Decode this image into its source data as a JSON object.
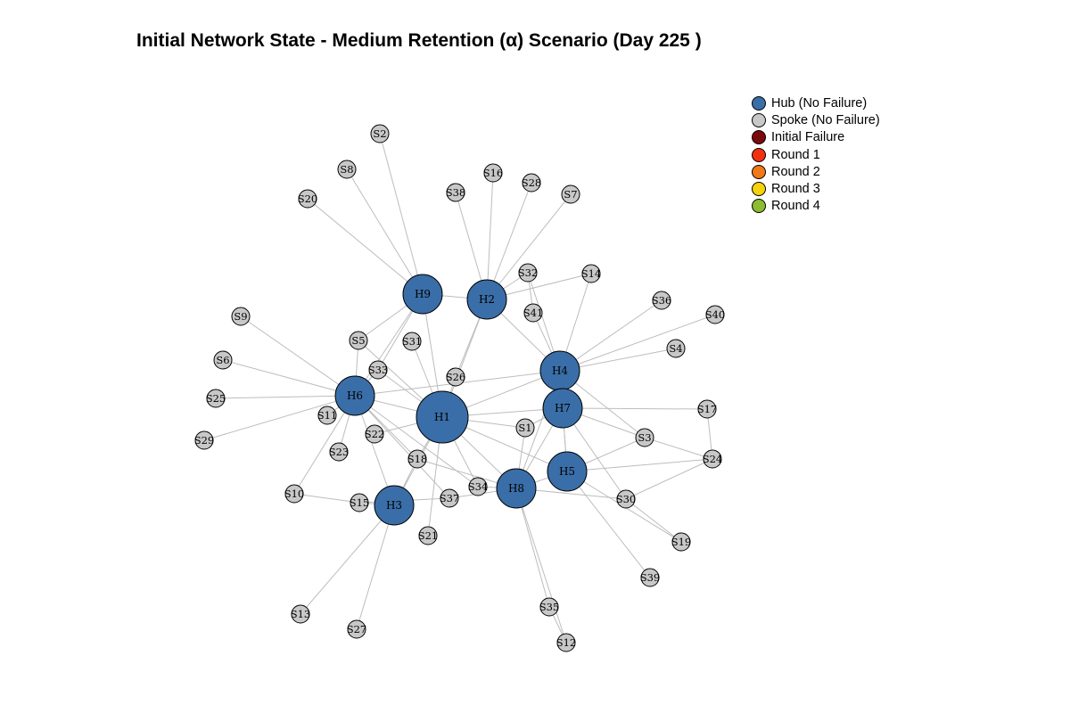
{
  "title": "Initial Network State - Medium Retention (α) Scenario (Day 225 )",
  "colors": {
    "hub": "#3a6ea8",
    "spoke": "#c8c8c8",
    "edge": "#bdbdbd",
    "initial_failure": "#7a0a0a",
    "round1": "#f2300f",
    "round2": "#f07818",
    "round3": "#f5d20a",
    "round4": "#8cbc30"
  },
  "legend": [
    {
      "label": "Hub (No Failure)",
      "color": "#3a6ea8"
    },
    {
      "label": "Spoke (No Failure)",
      "color": "#c8c8c8"
    },
    {
      "label": "Initial Failure",
      "color": "#7a0a0a"
    },
    {
      "label": "Round 1",
      "color": "#f2300f"
    },
    {
      "label": "Round 2",
      "color": "#f07818"
    },
    {
      "label": "Round 3",
      "color": "#f5d20a"
    },
    {
      "label": "Round 4",
      "color": "#8cbc30"
    }
  ],
  "nodes": [
    {
      "id": "H1",
      "type": "hub",
      "status": "no-failure"
    },
    {
      "id": "H2",
      "type": "hub",
      "status": "no-failure"
    },
    {
      "id": "H3",
      "type": "hub",
      "status": "no-failure"
    },
    {
      "id": "H4",
      "type": "hub",
      "status": "no-failure"
    },
    {
      "id": "H5",
      "type": "hub",
      "status": "no-failure"
    },
    {
      "id": "H6",
      "type": "hub",
      "status": "no-failure"
    },
    {
      "id": "H7",
      "type": "hub",
      "status": "no-failure"
    },
    {
      "id": "H8",
      "type": "hub",
      "status": "no-failure"
    },
    {
      "id": "H9",
      "type": "hub",
      "status": "no-failure"
    },
    {
      "id": "S1",
      "type": "spoke",
      "status": "no-failure"
    },
    {
      "id": "S2",
      "type": "spoke",
      "status": "no-failure"
    },
    {
      "id": "S3",
      "type": "spoke",
      "status": "no-failure"
    },
    {
      "id": "S4",
      "type": "spoke",
      "status": "no-failure"
    },
    {
      "id": "S5",
      "type": "spoke",
      "status": "no-failure"
    },
    {
      "id": "S6",
      "type": "spoke",
      "status": "no-failure"
    },
    {
      "id": "S7",
      "type": "spoke",
      "status": "no-failure"
    },
    {
      "id": "S8",
      "type": "spoke",
      "status": "no-failure"
    },
    {
      "id": "S9",
      "type": "spoke",
      "status": "no-failure"
    },
    {
      "id": "S10",
      "type": "spoke",
      "status": "no-failure"
    },
    {
      "id": "S11",
      "type": "spoke",
      "status": "no-failure"
    },
    {
      "id": "S12",
      "type": "spoke",
      "status": "no-failure"
    },
    {
      "id": "S13",
      "type": "spoke",
      "status": "no-failure"
    },
    {
      "id": "S14",
      "type": "spoke",
      "status": "no-failure"
    },
    {
      "id": "S15",
      "type": "spoke",
      "status": "no-failure"
    },
    {
      "id": "S16",
      "type": "spoke",
      "status": "no-failure"
    },
    {
      "id": "S17",
      "type": "spoke",
      "status": "no-failure"
    },
    {
      "id": "S18",
      "type": "spoke",
      "status": "no-failure"
    },
    {
      "id": "S19",
      "type": "spoke",
      "status": "no-failure"
    },
    {
      "id": "S20",
      "type": "spoke",
      "status": "no-failure"
    },
    {
      "id": "S21",
      "type": "spoke",
      "status": "no-failure"
    },
    {
      "id": "S22",
      "type": "spoke",
      "status": "no-failure"
    },
    {
      "id": "S23",
      "type": "spoke",
      "status": "no-failure"
    },
    {
      "id": "S24",
      "type": "spoke",
      "status": "no-failure"
    },
    {
      "id": "S25",
      "type": "spoke",
      "status": "no-failure"
    },
    {
      "id": "S26",
      "type": "spoke",
      "status": "no-failure"
    },
    {
      "id": "S27",
      "type": "spoke",
      "status": "no-failure"
    },
    {
      "id": "S28",
      "type": "spoke",
      "status": "no-failure"
    },
    {
      "id": "S29",
      "type": "spoke",
      "status": "no-failure"
    },
    {
      "id": "S30",
      "type": "spoke",
      "status": "no-failure"
    },
    {
      "id": "S31",
      "type": "spoke",
      "status": "no-failure"
    },
    {
      "id": "S32",
      "type": "spoke",
      "status": "no-failure"
    },
    {
      "id": "S33",
      "type": "spoke",
      "status": "no-failure"
    },
    {
      "id": "S34",
      "type": "spoke",
      "status": "no-failure"
    },
    {
      "id": "S35",
      "type": "spoke",
      "status": "no-failure"
    },
    {
      "id": "S36",
      "type": "spoke",
      "status": "no-failure"
    },
    {
      "id": "S37",
      "type": "spoke",
      "status": "no-failure"
    },
    {
      "id": "S38",
      "type": "spoke",
      "status": "no-failure"
    },
    {
      "id": "S39",
      "type": "spoke",
      "status": "no-failure"
    },
    {
      "id": "S40",
      "type": "spoke",
      "status": "no-failure"
    },
    {
      "id": "S41",
      "type": "spoke",
      "status": "no-failure"
    }
  ],
  "edges": [
    [
      "H9",
      "S2"
    ],
    [
      "H9",
      "S8"
    ],
    [
      "H9",
      "S20"
    ],
    [
      "H9",
      "H2"
    ],
    [
      "H9",
      "H6"
    ],
    [
      "H9",
      "S5"
    ],
    [
      "H9",
      "H1"
    ],
    [
      "H9",
      "S33"
    ],
    [
      "H2",
      "S38"
    ],
    [
      "H2",
      "S16"
    ],
    [
      "H2",
      "S28"
    ],
    [
      "H2",
      "S7"
    ],
    [
      "H2",
      "S32"
    ],
    [
      "H2",
      "S14"
    ],
    [
      "H2",
      "H1"
    ],
    [
      "H2",
      "S26"
    ],
    [
      "H2",
      "H4"
    ],
    [
      "H6",
      "S9"
    ],
    [
      "H6",
      "S6"
    ],
    [
      "H6",
      "S25"
    ],
    [
      "H6",
      "S29"
    ],
    [
      "H6",
      "S11"
    ],
    [
      "H6",
      "S23"
    ],
    [
      "H6",
      "S10"
    ],
    [
      "H6",
      "S5"
    ],
    [
      "H6",
      "H3"
    ],
    [
      "H6",
      "S18"
    ],
    [
      "H6",
      "H1"
    ],
    [
      "H6",
      "S33"
    ],
    [
      "H6",
      "S37"
    ],
    [
      "H6",
      "H4"
    ],
    [
      "H6",
      "S34"
    ],
    [
      "H1",
      "S31"
    ],
    [
      "H1",
      "S33"
    ],
    [
      "H1",
      "S26"
    ],
    [
      "H1",
      "S22"
    ],
    [
      "H1",
      "S18"
    ],
    [
      "H1",
      "S21"
    ],
    [
      "H1",
      "S34"
    ],
    [
      "H1",
      "S1"
    ],
    [
      "H1",
      "H4"
    ],
    [
      "H1",
      "H7"
    ],
    [
      "H1",
      "H8"
    ],
    [
      "H1",
      "H5"
    ],
    [
      "H1",
      "H3"
    ],
    [
      "H1",
      "S5"
    ],
    [
      "H4",
      "S36"
    ],
    [
      "H4",
      "S40"
    ],
    [
      "H4",
      "S4"
    ],
    [
      "H4",
      "S41"
    ],
    [
      "H4",
      "S32"
    ],
    [
      "H4",
      "S3"
    ],
    [
      "H4",
      "H8"
    ],
    [
      "H4",
      "H5"
    ],
    [
      "H4",
      "H7"
    ],
    [
      "H7",
      "S17"
    ],
    [
      "H7",
      "S3"
    ],
    [
      "H7",
      "H5"
    ],
    [
      "H7",
      "S30"
    ],
    [
      "H7",
      "H8"
    ],
    [
      "H7",
      "S1"
    ],
    [
      "H5",
      "S24"
    ],
    [
      "H5",
      "S39"
    ],
    [
      "H5",
      "S19"
    ],
    [
      "H5",
      "H8"
    ],
    [
      "H5",
      "S3"
    ],
    [
      "H8",
      "S35"
    ],
    [
      "H8",
      "S12"
    ],
    [
      "H8",
      "S30"
    ],
    [
      "H8",
      "S34"
    ],
    [
      "H8",
      "S37"
    ],
    [
      "H8",
      "S18"
    ],
    [
      "H8",
      "S1"
    ],
    [
      "H3",
      "S13"
    ],
    [
      "H3",
      "S27"
    ],
    [
      "H3",
      "S15"
    ],
    [
      "H3",
      "S18"
    ],
    [
      "S15",
      "S10"
    ],
    [
      "S15",
      "S37"
    ],
    [
      "S17",
      "S24"
    ],
    [
      "S24",
      "S30"
    ],
    [
      "S3",
      "S24"
    ],
    [
      "S30",
      "S19"
    ],
    [
      "S12",
      "S35"
    ],
    [
      "S14",
      "H4"
    ],
    [
      "S41",
      "S32"
    ]
  ]
}
